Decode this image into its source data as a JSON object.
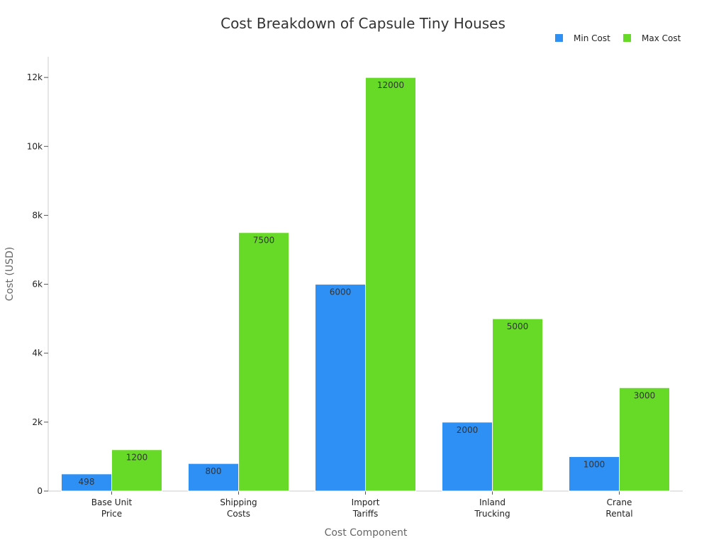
{
  "chart_data": {
    "type": "bar",
    "title": "Cost Breakdown of Capsule Tiny Houses",
    "xlabel": "Cost Component",
    "ylabel": "Cost (USD)",
    "categories": [
      [
        "Base Unit",
        "Price"
      ],
      [
        "Shipping",
        "Costs"
      ],
      [
        "Import",
        "Tariffs"
      ],
      [
        "Inland",
        "Trucking"
      ],
      [
        "Crane",
        "Rental"
      ]
    ],
    "series": [
      {
        "name": "Min Cost",
        "color": "#2e90f5",
        "values": [
          498,
          800,
          6000,
          2000,
          1000
        ]
      },
      {
        "name": "Max Cost",
        "color": "#66da26",
        "values": [
          1200,
          7500,
          12000,
          5000,
          3000
        ]
      }
    ],
    "ylim": [
      0,
      12600
    ],
    "yticks": [
      {
        "value": 0,
        "label": "0"
      },
      {
        "value": 2000,
        "label": "2k"
      },
      {
        "value": 4000,
        "label": "4k"
      },
      {
        "value": 6000,
        "label": "6k"
      },
      {
        "value": 8000,
        "label": "8k"
      },
      {
        "value": 10000,
        "label": "10k"
      },
      {
        "value": 12000,
        "label": "12k"
      }
    ],
    "grid": false,
    "legend": "top-right",
    "data_labels": true
  }
}
